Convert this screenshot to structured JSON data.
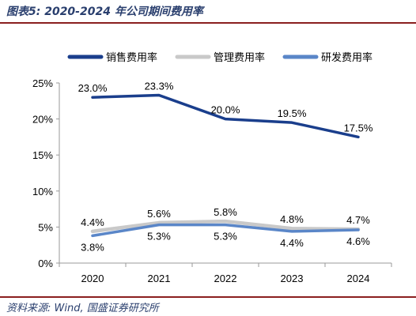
{
  "header": {
    "title": "图表5:  2020-2024 年公司期间费用率"
  },
  "footer": {
    "source": "资料来源:  Wind,  国盛证券研究所"
  },
  "chart_data": {
    "type": "line",
    "title": "图表5:  2020-2024 年公司期间费用率",
    "xlabel": "",
    "ylabel": "",
    "categories": [
      "2020",
      "2021",
      "2022",
      "2023",
      "2024"
    ],
    "ylim": [
      0,
      25
    ],
    "yticks": [
      0,
      5,
      10,
      15,
      20,
      25
    ],
    "ytick_labels": [
      "0%",
      "5%",
      "10%",
      "15%",
      "20%",
      "25%"
    ],
    "grid": false,
    "legend_position": "top",
    "series": [
      {
        "name": "销售费用率",
        "color": "#1a3e8c",
        "width": 3.5,
        "values": [
          23.0,
          23.3,
          20.0,
          19.5,
          17.5
        ],
        "labels": [
          "23.0%",
          "23.3%",
          "20.0%",
          "19.5%",
          "17.5%"
        ],
        "label_pos": [
          "above",
          "above",
          "above",
          "above",
          "above"
        ]
      },
      {
        "name": "管理费用率",
        "color": "#c9c9c9",
        "width": 4.5,
        "values": [
          4.4,
          5.6,
          5.8,
          4.8,
          4.7
        ],
        "labels": [
          "4.4%",
          "5.6%",
          "5.8%",
          "4.8%",
          "4.7%"
        ],
        "label_pos": [
          "above",
          "above",
          "above",
          "above",
          "above"
        ]
      },
      {
        "name": "研发费用率",
        "color": "#5a86c8",
        "width": 3.5,
        "values": [
          3.8,
          5.3,
          5.3,
          4.4,
          4.6
        ],
        "labels": [
          "3.8%",
          "5.3%",
          "5.3%",
          "4.4%",
          "4.6%"
        ],
        "label_pos": [
          "below",
          "below",
          "below",
          "below",
          "below"
        ]
      }
    ]
  }
}
